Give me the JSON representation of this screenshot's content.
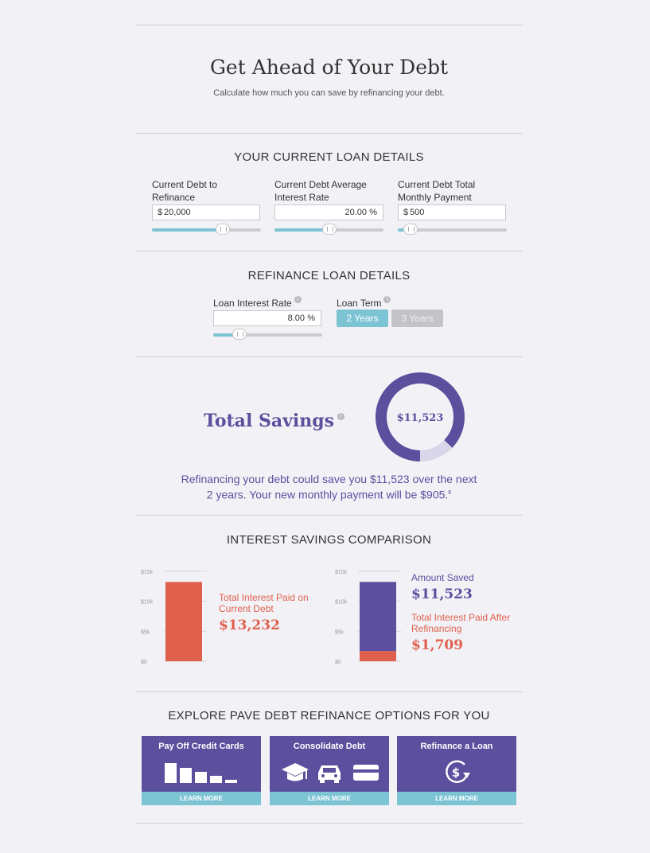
{
  "header": {
    "title": "Get Ahead of Your Debt",
    "subtitle": "Calculate how much you can save by refinancing your debt."
  },
  "current_loan": {
    "heading": "YOUR CURRENT LOAN DETAILS",
    "debt": {
      "label_line1": "Current Debt to",
      "label_line2": "Refinance",
      "prefix": "$",
      "value": "20,000",
      "slider_fraction": 0.65
    },
    "rate": {
      "label_line1": "Current Debt Average",
      "label_line2": "Interest Rate",
      "value": "20.00",
      "suffix": "%",
      "slider_fraction": 0.5
    },
    "payment": {
      "label_line1": "Current Debt Total",
      "label_line2": "Monthly Payment",
      "prefix": "$",
      "value": "500",
      "slider_fraction": 0.12
    }
  },
  "refinance_loan": {
    "heading": "REFINANCE LOAN DETAILS",
    "rate": {
      "label": "Loan Interest Rate",
      "value": "8.00",
      "suffix": "%",
      "slider_fraction": 0.24
    },
    "term": {
      "label": "Loan Term",
      "options": [
        "2 Years",
        "3 Years"
      ],
      "selected": "2 Years"
    },
    "info_icon": "i"
  },
  "savings": {
    "label": "Total Savings",
    "amount": "$11,523",
    "ring_fraction": 0.87,
    "message_line1": "Refinancing your debt could save you $11,523 over the next",
    "message_line2": "2 years. Your new monthly payment will be $905.",
    "footnote": "6"
  },
  "comparison": {
    "heading": "INTEREST SAVINGS COMPARISON",
    "left": {
      "caption_line1": "Total Interest Paid on",
      "caption_line2": "Current Debt",
      "amount": "$13,232"
    },
    "right": {
      "saved_caption": "Amount Saved",
      "saved_amount": "$11,523",
      "after_caption_line1": "Total Interest Paid After",
      "after_caption_line2": "Refinancing",
      "after_amount": "$1,709"
    },
    "colors": {
      "current": "#e0604e",
      "saved": "#5b4f9e",
      "after": "#e0604e"
    }
  },
  "chart_data": [
    {
      "type": "bar",
      "categories": [
        ""
      ],
      "series": [
        {
          "values": [
            13232
          ]
        }
      ],
      "yticks": [
        "$15k",
        "$10k",
        "$5k",
        "$0"
      ],
      "ylim": [
        0,
        15000
      ]
    },
    {
      "type": "bar",
      "stacked": true,
      "categories": [
        ""
      ],
      "series": [
        {
          "name": "Total Interest Paid After Refinancing",
          "values": [
            1709
          ]
        },
        {
          "name": "Amount Saved",
          "values": [
            11523
          ]
        }
      ],
      "yticks": [
        "$15k",
        "$10k",
        "$5k",
        "$0"
      ],
      "ylim": [
        0,
        15000
      ]
    }
  ],
  "explore": {
    "heading": "EXPLORE PAVE DEBT REFINANCE OPTIONS FOR YOU",
    "cards": [
      {
        "title": "Pay Off Credit Cards",
        "cta": "LEARN MORE",
        "icon": "decreasing-bars-icon"
      },
      {
        "title": "Consolidate Debt",
        "cta": "LEARN MORE",
        "icon": "graduation-car-card-icons"
      },
      {
        "title": "Refinance a Loan",
        "cta": "LEARN MORE",
        "icon": "dollar-refresh-icon"
      }
    ]
  }
}
